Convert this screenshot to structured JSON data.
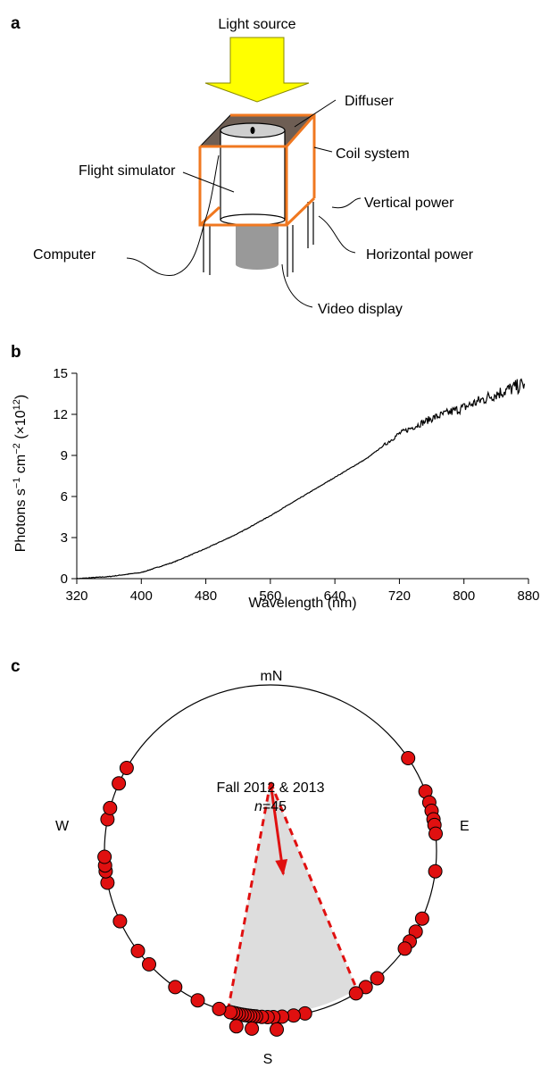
{
  "panel_a": {
    "letter": "a",
    "labels": {
      "light_source": "Light source",
      "diffuser": "Diffuser",
      "coil_system": "Coil system",
      "flight_simulator": "Flight simulator",
      "vertical_power": "Vertical power",
      "horizontal_power": "Horizontal power",
      "computer": "Computer",
      "video_display": "Video display"
    },
    "colors": {
      "arrow": "#ffff00",
      "coil": "#f07820",
      "diffuser": "#5a4a40"
    }
  },
  "panel_b": {
    "letter": "b",
    "chart_data": {
      "type": "line",
      "title": "",
      "xlabel": "Wavelength (nm)",
      "ylabel_main": "Photons s",
      "ylabel_sup1": "−1",
      "ylabel_mid": " cm",
      "ylabel_sup2": "−2",
      "ylabel_tail": " (×10",
      "ylabel_sup3": "12",
      "ylabel_end": ")",
      "xlim": [
        320,
        880
      ],
      "ylim": [
        0,
        15
      ],
      "xticks": [
        320,
        400,
        480,
        560,
        640,
        720,
        800,
        880
      ],
      "yticks": [
        0,
        3,
        6,
        9,
        12,
        15
      ],
      "series": [
        {
          "color": "#000000",
          "x": [
            320,
            360,
            400,
            440,
            480,
            520,
            560,
            600,
            640,
            680,
            720,
            760,
            800,
            840,
            875
          ],
          "y": [
            0.0,
            0.15,
            0.45,
            1.2,
            2.2,
            3.3,
            4.6,
            6.0,
            7.4,
            8.8,
            10.6,
            11.7,
            12.5,
            13.5,
            14.2
          ]
        }
      ]
    }
  },
  "panel_c": {
    "letter": "c",
    "chart_data": {
      "type": "circular",
      "title": "Fall 2012 & 2013",
      "n_label": "n",
      "n_value": "=45",
      "directions": {
        "north": "mN",
        "east": "E",
        "south": "S",
        "west": "W"
      },
      "mean_bearing_deg": 172,
      "mean_vector_r": 0.62,
      "ci95_deg": [
        148,
        195
      ],
      "point_color": "#e01010",
      "bearings_deg": [
        56,
        69,
        73,
        76,
        79,
        81,
        84,
        97,
        114,
        119,
        123,
        126,
        140,
        145,
        149,
        168,
        172,
        176,
        179,
        181,
        183,
        185,
        186,
        187,
        188,
        189,
        190,
        191,
        192,
        193,
        194,
        198,
        206,
        215,
        227,
        233,
        245,
        259,
        263,
        265,
        268,
        281,
        285,
        294,
        300
      ],
      "bearings_outer_deg": [
        178,
        186,
        191
      ]
    }
  }
}
